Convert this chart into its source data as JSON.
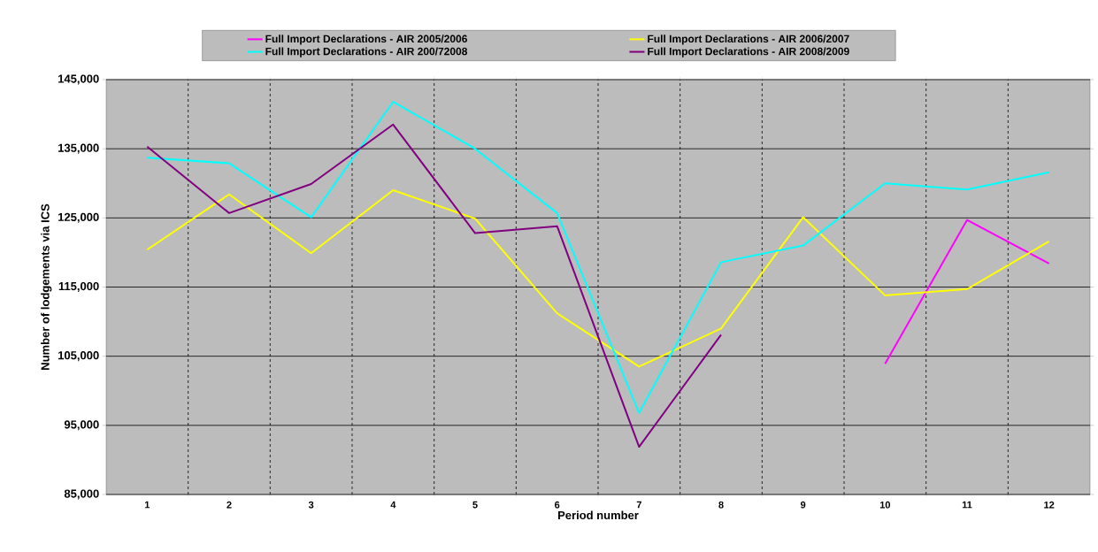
{
  "chart_data": {
    "type": "line",
    "xlabel": "Period number",
    "ylabel": "Number of lodgements via ICS",
    "categories": [
      "1",
      "2",
      "3",
      "4",
      "5",
      "6",
      "7",
      "8",
      "9",
      "10",
      "11",
      "12"
    ],
    "series": [
      {
        "name": "Full Import Declarations - AIR 2005/2006",
        "color": "#ff00ff",
        "values": [
          null,
          null,
          null,
          null,
          null,
          null,
          null,
          null,
          null,
          103900,
          124700,
          118400
        ]
      },
      {
        "name": "Full Import Declarations - AIR 2006/2007",
        "color": "#ffff00",
        "values": [
          120400,
          128400,
          119900,
          129000,
          124900,
          111200,
          103500,
          109000,
          125100,
          113800,
          114700,
          121600
        ]
      },
      {
        "name": "Full Import Declarations - AIR 200/72008",
        "color": "#00ffff",
        "values": [
          133700,
          132900,
          125100,
          141800,
          135000,
          125700,
          96800,
          118600,
          121000,
          130000,
          129100,
          131600
        ]
      },
      {
        "name": "Full Import Declarations - AIR 2008/2009",
        "color": "#800080",
        "values": [
          135300,
          125700,
          129900,
          138500,
          122800,
          123800,
          91900,
          108100,
          null,
          null,
          null,
          null
        ]
      }
    ],
    "ylim": [
      85000,
      145000
    ],
    "yticks": [
      {
        "value": 85000,
        "label": "85,000"
      },
      {
        "value": 95000,
        "label": "95,000"
      },
      {
        "value": 105000,
        "label": "105,000"
      },
      {
        "value": 115000,
        "label": "115,000"
      },
      {
        "value": 125000,
        "label": "125,000"
      },
      {
        "value": 135000,
        "label": "135,000"
      },
      {
        "value": 145000,
        "label": "145,000"
      }
    ],
    "grid": true,
    "legend": "top",
    "marker": "none",
    "line_style": "solid"
  }
}
